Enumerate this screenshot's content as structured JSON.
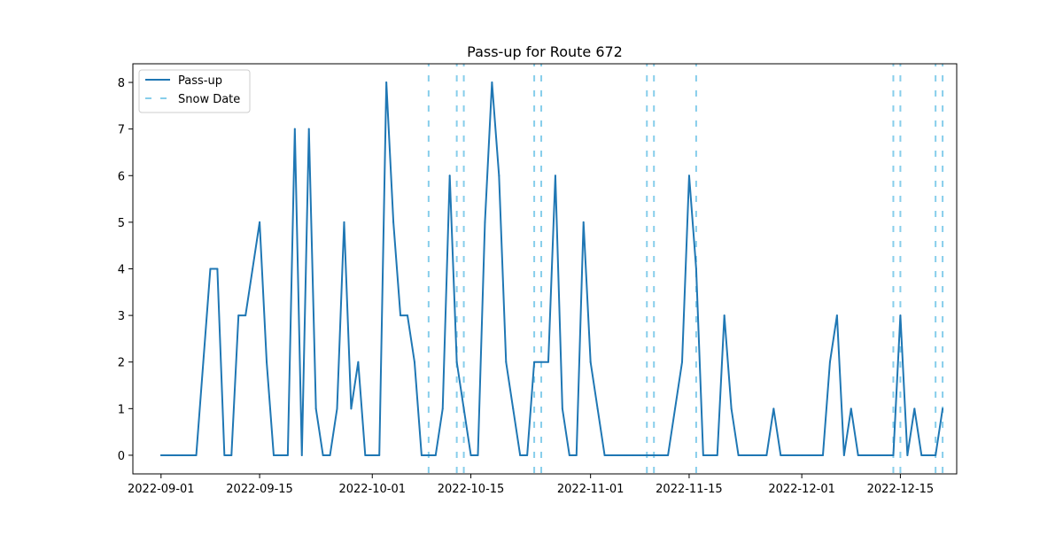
{
  "chart_data": {
    "type": "line",
    "title": "Pass-up for Route 672",
    "xlabel": "",
    "ylabel": "",
    "x_type": "date",
    "xlim": [
      "2022-08-28",
      "2022-12-23"
    ],
    "ylim": [
      -0.4,
      8.4
    ],
    "x_ticks": [
      "2022-09-01",
      "2022-09-15",
      "2022-10-01",
      "2022-10-15",
      "2022-11-01",
      "2022-11-15",
      "2022-12-01",
      "2022-12-15"
    ],
    "y_ticks": [
      0,
      1,
      2,
      3,
      4,
      5,
      6,
      7,
      8
    ],
    "grid": false,
    "legend_position": "top-left",
    "legend": [
      "Pass-up",
      "Snow Date"
    ],
    "series": [
      {
        "name": "Pass-up",
        "color": "#1f77b4",
        "points": [
          [
            "2022-09-01",
            0
          ],
          [
            "2022-09-02",
            0
          ],
          [
            "2022-09-03",
            0
          ],
          [
            "2022-09-04",
            0
          ],
          [
            "2022-09-05",
            0
          ],
          [
            "2022-09-06",
            0
          ],
          [
            "2022-09-07",
            2
          ],
          [
            "2022-09-08",
            4
          ],
          [
            "2022-09-09",
            4
          ],
          [
            "2022-09-10",
            0
          ],
          [
            "2022-09-11",
            0
          ],
          [
            "2022-09-12",
            3
          ],
          [
            "2022-09-13",
            3
          ],
          [
            "2022-09-14",
            4
          ],
          [
            "2022-09-15",
            5
          ],
          [
            "2022-09-16",
            2
          ],
          [
            "2022-09-17",
            0
          ],
          [
            "2022-09-18",
            0
          ],
          [
            "2022-09-19",
            0
          ],
          [
            "2022-09-20",
            7
          ],
          [
            "2022-09-21",
            0
          ],
          [
            "2022-09-22",
            7
          ],
          [
            "2022-09-23",
            1
          ],
          [
            "2022-09-24",
            0
          ],
          [
            "2022-09-25",
            0
          ],
          [
            "2022-09-26",
            1
          ],
          [
            "2022-09-27",
            5
          ],
          [
            "2022-09-28",
            1
          ],
          [
            "2022-09-29",
            2
          ],
          [
            "2022-09-30",
            0
          ],
          [
            "2022-10-01",
            0
          ],
          [
            "2022-10-02",
            0
          ],
          [
            "2022-10-03",
            8
          ],
          [
            "2022-10-04",
            5
          ],
          [
            "2022-10-05",
            3
          ],
          [
            "2022-10-06",
            3
          ],
          [
            "2022-10-07",
            2
          ],
          [
            "2022-10-08",
            0
          ],
          [
            "2022-10-09",
            0
          ],
          [
            "2022-10-10",
            0
          ],
          [
            "2022-10-11",
            1
          ],
          [
            "2022-10-12",
            6
          ],
          [
            "2022-10-13",
            2
          ],
          [
            "2022-10-14",
            1
          ],
          [
            "2022-10-15",
            0
          ],
          [
            "2022-10-16",
            0
          ],
          [
            "2022-10-17",
            5
          ],
          [
            "2022-10-18",
            8
          ],
          [
            "2022-10-19",
            6
          ],
          [
            "2022-10-20",
            2
          ],
          [
            "2022-10-21",
            1
          ],
          [
            "2022-10-22",
            0
          ],
          [
            "2022-10-23",
            0
          ],
          [
            "2022-10-24",
            2
          ],
          [
            "2022-10-25",
            2
          ],
          [
            "2022-10-26",
            2
          ],
          [
            "2022-10-27",
            6
          ],
          [
            "2022-10-28",
            1
          ],
          [
            "2022-10-29",
            0
          ],
          [
            "2022-10-30",
            0
          ],
          [
            "2022-10-31",
            5
          ],
          [
            "2022-11-01",
            2
          ],
          [
            "2022-11-02",
            1
          ],
          [
            "2022-11-03",
            0
          ],
          [
            "2022-11-04",
            0
          ],
          [
            "2022-11-05",
            0
          ],
          [
            "2022-11-06",
            0
          ],
          [
            "2022-11-07",
            0
          ],
          [
            "2022-11-08",
            0
          ],
          [
            "2022-11-09",
            0
          ],
          [
            "2022-11-10",
            0
          ],
          [
            "2022-11-11",
            0
          ],
          [
            "2022-11-12",
            0
          ],
          [
            "2022-11-13",
            1
          ],
          [
            "2022-11-14",
            2
          ],
          [
            "2022-11-15",
            6
          ],
          [
            "2022-11-16",
            4
          ],
          [
            "2022-11-17",
            0
          ],
          [
            "2022-11-18",
            0
          ],
          [
            "2022-11-19",
            0
          ],
          [
            "2022-11-20",
            3
          ],
          [
            "2022-11-21",
            1
          ],
          [
            "2022-11-22",
            0
          ],
          [
            "2022-11-23",
            0
          ],
          [
            "2022-11-24",
            0
          ],
          [
            "2022-11-25",
            0
          ],
          [
            "2022-11-26",
            0
          ],
          [
            "2022-11-27",
            1
          ],
          [
            "2022-11-28",
            0
          ],
          [
            "2022-11-29",
            0
          ],
          [
            "2022-11-30",
            0
          ],
          [
            "2022-12-01",
            0
          ],
          [
            "2022-12-02",
            0
          ],
          [
            "2022-12-03",
            0
          ],
          [
            "2022-12-04",
            0
          ],
          [
            "2022-12-05",
            2
          ],
          [
            "2022-12-06",
            3
          ],
          [
            "2022-12-07",
            0
          ],
          [
            "2022-12-08",
            1
          ],
          [
            "2022-12-09",
            0
          ],
          [
            "2022-12-10",
            0
          ],
          [
            "2022-12-11",
            0
          ],
          [
            "2022-12-12",
            0
          ],
          [
            "2022-12-13",
            0
          ],
          [
            "2022-12-14",
            0
          ],
          [
            "2022-12-15",
            3
          ],
          [
            "2022-12-16",
            0
          ],
          [
            "2022-12-17",
            1
          ],
          [
            "2022-12-18",
            0
          ],
          [
            "2022-12-19",
            0
          ],
          [
            "2022-12-20",
            0
          ],
          [
            "2022-12-21",
            1
          ]
        ]
      }
    ],
    "vlines": {
      "name": "Snow Date",
      "color": "#87ceeb",
      "style": "dashed",
      "dates": [
        "2022-10-09",
        "2022-10-13",
        "2022-10-14",
        "2022-10-24",
        "2022-10-25",
        "2022-11-09",
        "2022-11-10",
        "2022-11-16",
        "2022-12-14",
        "2022-12-15",
        "2022-12-20",
        "2022-12-21"
      ]
    }
  }
}
